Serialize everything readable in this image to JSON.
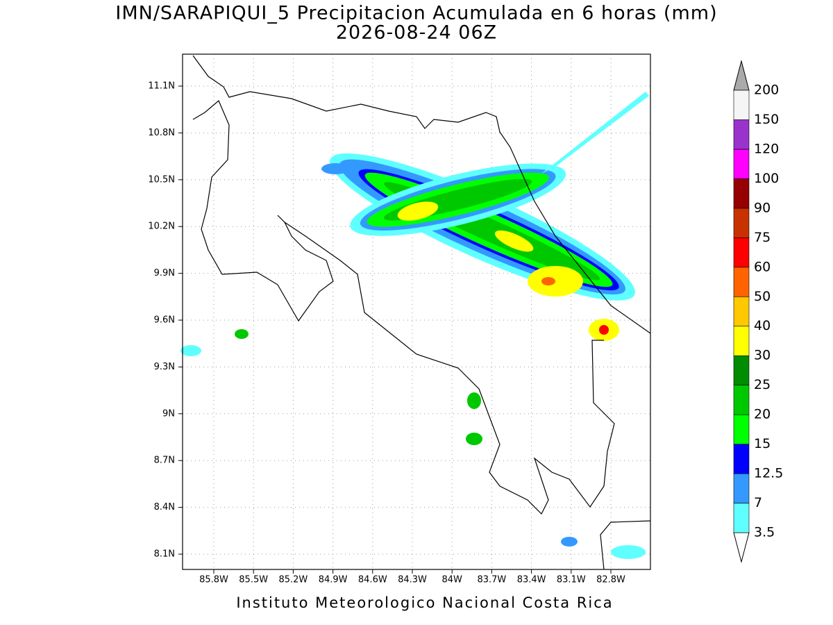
{
  "header": {
    "title": "IMN/SARAPIQUI_5 Precipitacion Acumulada en 6 horas (mm)",
    "subtitle": "2026-08-24 06Z"
  },
  "map": {
    "lat_labels": [
      "11.1N",
      "10.8N",
      "10.5N",
      "10.2N",
      "9.9N",
      "9.6N",
      "9.3N",
      "9N",
      "8.7N",
      "8.4N",
      "8.1N"
    ],
    "lon_labels": [
      "85.8W",
      "85.5W",
      "85.2W",
      "84.9W",
      "84.6W",
      "84.3W",
      "84W",
      "83.7W",
      "83.4W",
      "83.1W",
      "82.8W"
    ]
  },
  "colorbar": {
    "labels": [
      "3.5",
      "7",
      "12.5",
      "15",
      "20",
      "25",
      "30",
      "40",
      "50",
      "60",
      "75",
      "90",
      "100",
      "120",
      "150",
      "200"
    ],
    "colors": [
      "#60ffff",
      "#3399ff",
      "#0000ff",
      "#00ff00",
      "#00c800",
      "#008c00",
      "#ffff00",
      "#ffc800",
      "#ff6400",
      "#ff0000",
      "#c83200",
      "#960000",
      "#ff00ff",
      "#9933cc",
      "#f5f5f5"
    ],
    "over_color": "#aaaaaa",
    "under_color": "#ffffff"
  },
  "footer": "Instituto Meteorologico Nacional Costa Rica"
}
